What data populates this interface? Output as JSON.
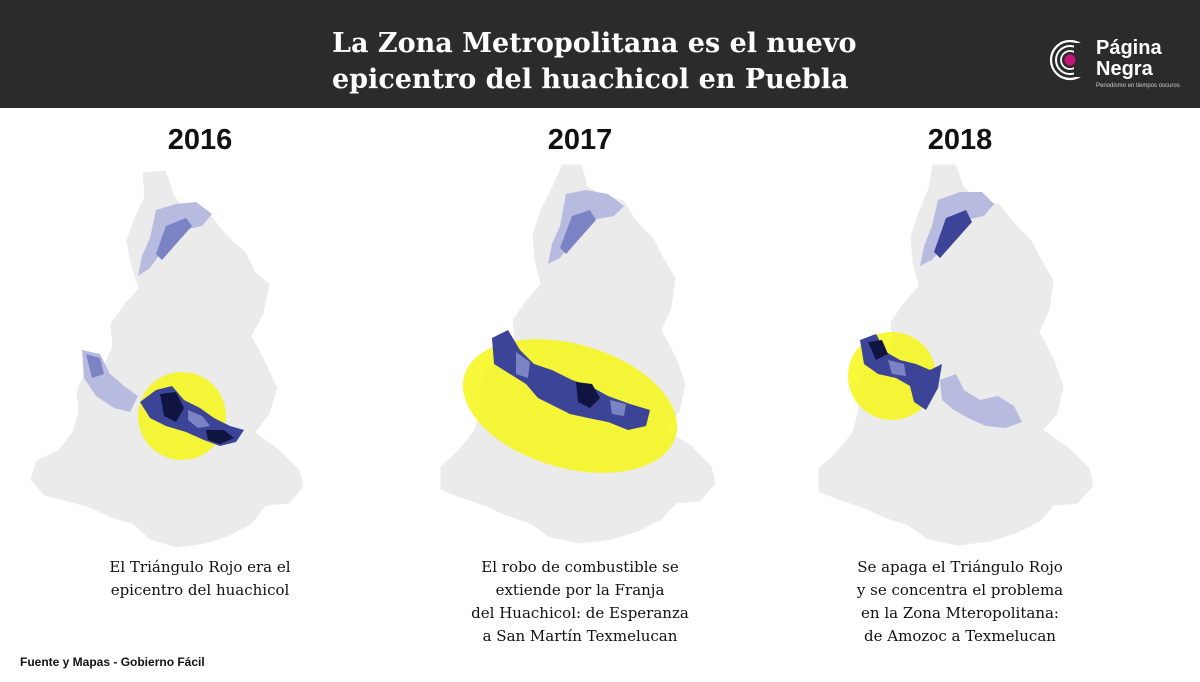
{
  "header": {
    "title_line1": "La Zona Metropolitana es el nuevo",
    "title_line2": "epicentro del huachicol en Puebla",
    "logo": {
      "name_line1": "Página",
      "name_line2": "Negra",
      "tagline": "Periodismo en tiempos oscuros",
      "accent_color": "#c4157a"
    }
  },
  "panels": [
    {
      "year": "2016",
      "caption": [
        "El Triángulo Rojo era el",
        "epicentro del huachicol"
      ]
    },
    {
      "year": "2017",
      "caption": [
        "El robo de combustible se",
        "extiende por la Franja",
        "del Huachicol: de Esperanza",
        "a San Martín Texmelucan"
      ]
    },
    {
      "year": "2018",
      "caption": [
        "Se apaga el Triángulo Rojo",
        "y se concentra el problema",
        "en la Zona Mteropolitana:",
        "de Amozoc a Texmelucan"
      ]
    }
  ],
  "colors": {
    "map_base": "#ebebeb",
    "highlight": "#f7f718",
    "light": "#b7bbe0",
    "medium": "#7c83c4",
    "dark": "#3b4496",
    "darkest": "#0f1440"
  },
  "source": "Fuente y Mapas - Gobierno Fácil"
}
